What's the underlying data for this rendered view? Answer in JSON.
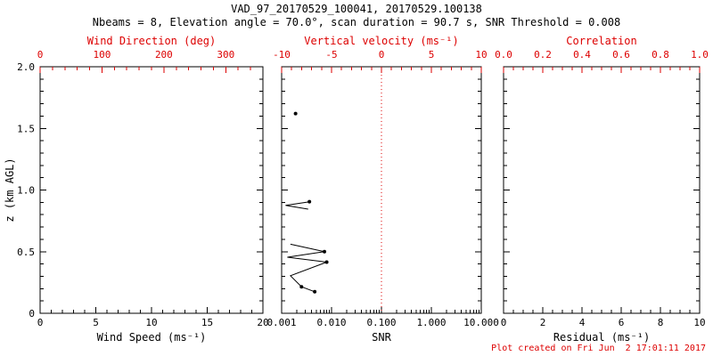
{
  "page": {
    "title": "VAD_97_20170529_100041, 20170529.100138",
    "subtitle": "Nbeams = 8, Elevation angle = 70.0°, scan duration = 90.7 s, SNR Threshold = 0.008",
    "footer": "Plot created on Fri Jun  2 17:01:11 2017"
  },
  "colors": {
    "primary_axis": "#000000",
    "secondary_axis": "#dd0000",
    "marker": "#000000",
    "background": "#ffffff"
  },
  "chart_data": [
    {
      "id": "wind-speed-panel",
      "type": "scatter",
      "xlabel": "Wind Speed (ms⁻¹)",
      "xlabel_top": "Wind Direction (deg)",
      "ylabel": "z (km AGL)",
      "x_bottom": {
        "min": 0,
        "max": 20,
        "ticks": [
          0,
          5,
          10,
          15,
          20
        ],
        "labels": [
          "0",
          "5",
          "10",
          "15",
          "20"
        ],
        "minor": 1
      },
      "x_top": {
        "min": 0,
        "max": 360,
        "ticks": [
          0,
          100,
          200,
          300
        ],
        "labels": [
          "0",
          "100",
          "200",
          "300"
        ],
        "minor": 20
      },
      "y": {
        "min": 0,
        "max": 2,
        "ticks": [
          0,
          0.5,
          1,
          1.5,
          2
        ],
        "labels": [
          "0",
          "0.5",
          "1.0",
          "1.5",
          "2.0"
        ],
        "minor": 0.1
      },
      "segments": []
    },
    {
      "id": "snr-panel",
      "type": "line",
      "xlabel": "SNR",
      "xlabel_top": "Vertical velocity (ms⁻¹)",
      "ylabel": "",
      "x_bottom": {
        "scale": "log",
        "min": 0.001,
        "max": 10,
        "ticks": [
          0.001,
          0.01,
          0.1,
          1,
          10
        ],
        "labels": [
          "0.001",
          "0.010",
          "0.100",
          "1.000",
          "10.000"
        ]
      },
      "x_top": {
        "min": -10,
        "max": 10,
        "ticks": [
          -10,
          -5,
          0,
          5,
          10
        ],
        "labels": [
          "-10",
          "-5",
          "0",
          "5",
          "10"
        ],
        "minor": 1
      },
      "y": {
        "min": 0,
        "max": 2,
        "ticks": [
          0,
          0.5,
          1,
          1.5,
          2
        ],
        "labels": [],
        "minor": 0.1
      },
      "refline_x": 0.1,
      "segments": [
        {
          "points": [
            [
              0.0019,
              1.62
            ]
          ],
          "markers": [
            0
          ]
        },
        {
          "points": [
            [
              0.0036,
              0.905
            ],
            [
              0.0012,
              0.875
            ],
            [
              0.0034,
              0.845
            ]
          ],
          "markers": [
            0
          ]
        },
        {
          "points": [
            [
              0.0015,
              0.56
            ],
            [
              0.0072,
              0.5
            ],
            [
              0.0013,
              0.455
            ],
            [
              0.008,
              0.415
            ],
            [
              0.0015,
              0.305
            ],
            [
              0.0025,
              0.215
            ],
            [
              0.0046,
              0.175
            ]
          ],
          "markers": [
            1,
            3,
            5,
            6
          ]
        }
      ]
    },
    {
      "id": "residual-panel",
      "type": "scatter",
      "xlabel": "Residual (ms⁻¹)",
      "xlabel_top": "Correlation",
      "ylabel": "",
      "x_bottom": {
        "min": 0,
        "max": 10,
        "ticks": [
          0,
          2,
          4,
          6,
          8,
          10
        ],
        "labels": [
          "0",
          "2",
          "4",
          "6",
          "8",
          "10"
        ],
        "minor": 0.5
      },
      "x_top": {
        "min": 0,
        "max": 1,
        "ticks": [
          0,
          0.2,
          0.4,
          0.6,
          0.8,
          1
        ],
        "labels": [
          "0.0",
          "0.2",
          "0.4",
          "0.6",
          "0.8",
          "1.0"
        ],
        "minor": 0.05
      },
      "y": {
        "min": 0,
        "max": 2,
        "ticks": [
          0,
          0.5,
          1,
          1.5,
          2
        ],
        "labels": [],
        "minor": 0.1
      },
      "segments": []
    }
  ]
}
